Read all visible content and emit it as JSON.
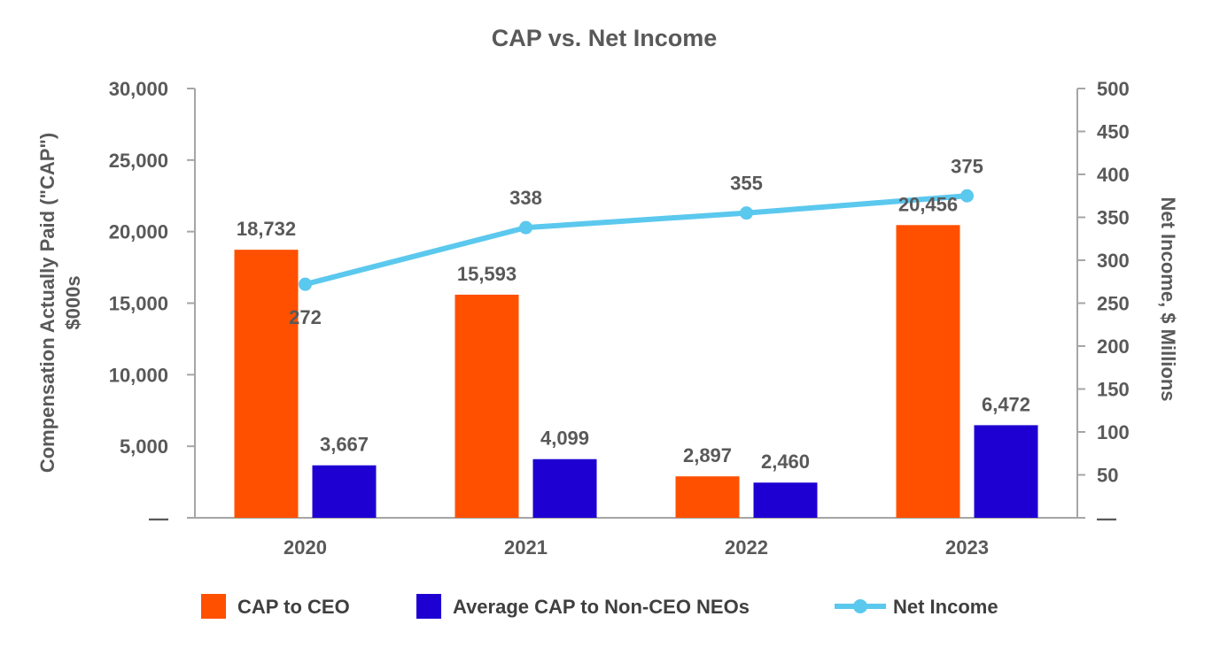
{
  "chart_data": {
    "type": "bar",
    "title": "CAP vs. Net Income",
    "categories": [
      "2020",
      "2021",
      "2022",
      "2023"
    ],
    "series": [
      {
        "name": "CAP to CEO",
        "kind": "bar",
        "axis": "left",
        "color": "#FF5000",
        "values": [
          18732,
          15593,
          2897,
          20456
        ],
        "labels": [
          "18,732",
          "15,593",
          "2,897",
          "20,456"
        ]
      },
      {
        "name": "Average CAP to Non-CEO NEOs",
        "kind": "bar",
        "axis": "left",
        "color": "#1E00D2",
        "values": [
          3667,
          4099,
          2460,
          6472
        ],
        "labels": [
          "3,667",
          "4,099",
          "2,460",
          "6,472"
        ]
      },
      {
        "name": "Net Income",
        "kind": "line",
        "axis": "right",
        "color": "#5BC8EE",
        "values": [
          272,
          338,
          355,
          375
        ],
        "labels": [
          "272",
          "338",
          "355",
          "375"
        ]
      }
    ],
    "ylabel": "Compensation Actually Paid (\"CAP\")",
    "ylabel_line2": "$000s",
    "y2label": "Net Income, $ Millions",
    "ylim": [
      0,
      30000
    ],
    "y2lim": [
      0,
      500
    ],
    "yticks": [
      "—",
      "5,000",
      "10,000",
      "15,000",
      "20,000",
      "25,000",
      "30,000"
    ],
    "y2ticks": [
      "—",
      "50",
      "100",
      "150",
      "200",
      "250",
      "300",
      "350",
      "400",
      "450",
      "500"
    ],
    "legend": [
      "CAP to CEO",
      "Average CAP to Non-CEO NEOs",
      "Net Income"
    ],
    "legend_position": "bottom"
  }
}
